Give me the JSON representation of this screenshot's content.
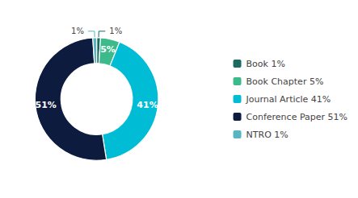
{
  "chart_data": {
    "type": "donut",
    "categories": [
      "Book 1%",
      "Book Chapter 5%",
      "Journal Article 41%",
      "Conference Paper 51%",
      "NTRO 1%"
    ],
    "values": [
      1,
      5,
      41,
      51,
      1
    ],
    "value_labels": [
      "1%",
      "5%",
      "41%",
      "51%",
      "1%"
    ],
    "colors": [
      "#1d6b5e",
      "#3dba8c",
      "#00bcd4",
      "#0d1b3e",
      "#5ab5c2"
    ],
    "data_labels": true,
    "legend": "right"
  }
}
